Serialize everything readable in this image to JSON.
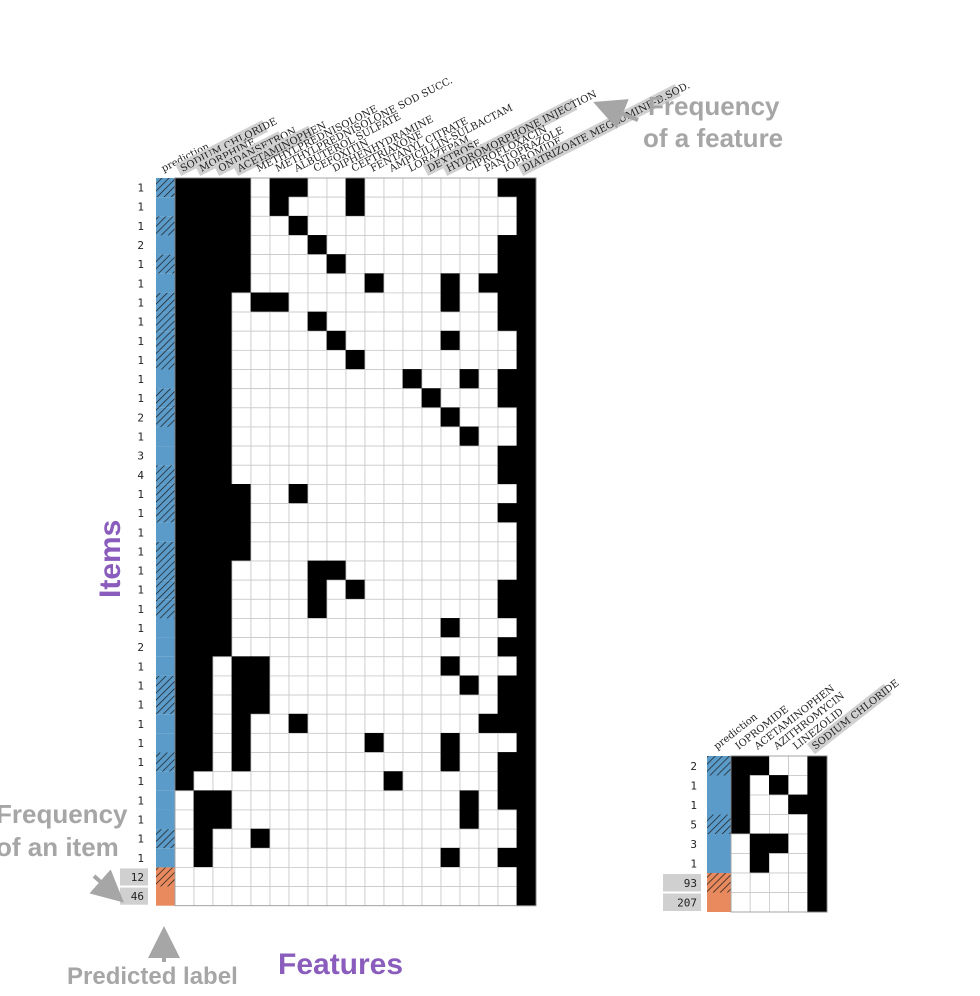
{
  "annotations": {
    "feature_freq": [
      "Frequency",
      "of a feature"
    ],
    "item_freq": [
      "Frequency",
      "of an item"
    ],
    "items": "Items",
    "predicted_label": "Predicted label",
    "features": "Features"
  },
  "colors": {
    "blue": "#5b9bc9",
    "orange": "#e88a5e",
    "filled": "#000000",
    "grid": "#c8c8c8",
    "header_bg": "#d0d0d0",
    "annotation": "#a6a6a6",
    "purple": "#8a5dbd"
  },
  "left_matrix": {
    "headers": [
      "prediction",
      "SODIUM CHLORIDE",
      "MORPHINE",
      "ONDANSETRON",
      "ACETAMINOPHEN",
      "METHYLPREDNISOLONE",
      "METHYLPREDNISOLONE SOD SUCC.",
      "ALBUTEROL SULFATE",
      "CEFOXITIN",
      "DIPHENHYDRAMINE",
      "CEFTRIAXONE",
      "FENTANYL CITRATE",
      "AMPICILLIN-SULBACTAM",
      "LORAZEPAM",
      "DEXTROSE",
      "HYDROMORPHONE INJECTION",
      "CIPROFLOXACIN",
      "PANTOPRAZOLE",
      "IOPROMIDE",
      "DIATRIZOATE MEGLUMINE-D.SOD."
    ],
    "feature_highlighted": [
      true,
      true,
      true,
      true,
      false,
      false,
      false,
      false,
      false,
      false,
      false,
      false,
      false,
      true,
      true,
      false,
      false,
      false,
      true
    ],
    "rows": [
      {
        "freq": "1",
        "pred": "blue",
        "hatch": true,
        "cells": [
          1,
          1,
          1,
          1,
          0,
          1,
          1,
          0,
          0,
          1,
          0,
          0,
          0,
          0,
          0,
          0,
          0,
          1,
          1
        ]
      },
      {
        "freq": "1",
        "pred": "blue",
        "hatch": false,
        "cells": [
          1,
          1,
          1,
          1,
          0,
          1,
          0,
          0,
          0,
          1,
          0,
          0,
          0,
          0,
          0,
          0,
          0,
          0,
          1
        ]
      },
      {
        "freq": "1",
        "pred": "blue",
        "hatch": true,
        "cells": [
          1,
          1,
          1,
          1,
          0,
          0,
          1,
          0,
          0,
          0,
          0,
          0,
          0,
          0,
          0,
          0,
          0,
          0,
          1
        ]
      },
      {
        "freq": "2",
        "pred": "blue",
        "hatch": false,
        "cells": [
          1,
          1,
          1,
          1,
          0,
          0,
          0,
          1,
          0,
          0,
          0,
          0,
          0,
          0,
          0,
          0,
          0,
          1,
          1
        ]
      },
      {
        "freq": "1",
        "pred": "blue",
        "hatch": true,
        "cells": [
          1,
          1,
          1,
          1,
          0,
          0,
          0,
          0,
          1,
          0,
          0,
          0,
          0,
          0,
          0,
          0,
          0,
          1,
          1
        ]
      },
      {
        "freq": "1",
        "pred": "blue",
        "hatch": false,
        "cells": [
          1,
          1,
          1,
          1,
          0,
          0,
          0,
          0,
          0,
          0,
          1,
          0,
          0,
          0,
          1,
          0,
          1,
          1,
          1
        ]
      },
      {
        "freq": "1",
        "pred": "blue",
        "hatch": true,
        "cells": [
          1,
          1,
          1,
          0,
          1,
          1,
          0,
          0,
          0,
          0,
          0,
          0,
          0,
          0,
          1,
          0,
          0,
          1,
          1
        ]
      },
      {
        "freq": "1",
        "pred": "blue",
        "hatch": true,
        "cells": [
          1,
          1,
          1,
          0,
          0,
          0,
          0,
          1,
          0,
          0,
          0,
          0,
          0,
          0,
          0,
          0,
          0,
          1,
          1
        ]
      },
      {
        "freq": "1",
        "pred": "blue",
        "hatch": true,
        "cells": [
          1,
          1,
          1,
          0,
          0,
          0,
          0,
          0,
          1,
          0,
          0,
          0,
          0,
          0,
          1,
          0,
          0,
          0,
          1
        ]
      },
      {
        "freq": "1",
        "pred": "blue",
        "hatch": true,
        "cells": [
          1,
          1,
          1,
          0,
          0,
          0,
          0,
          0,
          0,
          1,
          0,
          0,
          0,
          0,
          0,
          0,
          0,
          0,
          1
        ]
      },
      {
        "freq": "1",
        "pred": "blue",
        "hatch": false,
        "cells": [
          1,
          1,
          1,
          0,
          0,
          0,
          0,
          0,
          0,
          0,
          0,
          0,
          1,
          0,
          0,
          1,
          0,
          1,
          1
        ]
      },
      {
        "freq": "1",
        "pred": "blue",
        "hatch": true,
        "cells": [
          1,
          1,
          1,
          0,
          0,
          0,
          0,
          0,
          0,
          0,
          0,
          0,
          0,
          1,
          0,
          0,
          0,
          1,
          1
        ]
      },
      {
        "freq": "2",
        "pred": "blue",
        "hatch": true,
        "cells": [
          1,
          1,
          1,
          0,
          0,
          0,
          0,
          0,
          0,
          0,
          0,
          0,
          0,
          0,
          1,
          0,
          0,
          0,
          1
        ]
      },
      {
        "freq": "1",
        "pred": "blue",
        "hatch": false,
        "cells": [
          1,
          1,
          1,
          0,
          0,
          0,
          0,
          0,
          0,
          0,
          0,
          0,
          0,
          0,
          0,
          1,
          0,
          0,
          1
        ]
      },
      {
        "freq": "3",
        "pred": "blue",
        "hatch": false,
        "cells": [
          1,
          1,
          1,
          0,
          0,
          0,
          0,
          0,
          0,
          0,
          0,
          0,
          0,
          0,
          0,
          0,
          0,
          1,
          1
        ]
      },
      {
        "freq": "4",
        "pred": "blue",
        "hatch": true,
        "cells": [
          1,
          1,
          1,
          0,
          0,
          0,
          0,
          0,
          0,
          0,
          0,
          0,
          0,
          0,
          0,
          0,
          0,
          1,
          1
        ]
      },
      {
        "freq": "1",
        "pred": "blue",
        "hatch": true,
        "cells": [
          1,
          1,
          1,
          1,
          0,
          0,
          1,
          0,
          0,
          0,
          0,
          0,
          0,
          0,
          0,
          0,
          0,
          0,
          1
        ]
      },
      {
        "freq": "1",
        "pred": "blue",
        "hatch": true,
        "cells": [
          1,
          1,
          1,
          1,
          0,
          0,
          0,
          0,
          0,
          0,
          0,
          0,
          0,
          0,
          0,
          0,
          0,
          1,
          1
        ]
      },
      {
        "freq": "1",
        "pred": "blue",
        "hatch": false,
        "cells": [
          1,
          1,
          1,
          1,
          0,
          0,
          0,
          0,
          0,
          0,
          0,
          0,
          0,
          0,
          0,
          0,
          0,
          0,
          1
        ]
      },
      {
        "freq": "1",
        "pred": "blue",
        "hatch": true,
        "cells": [
          1,
          1,
          1,
          1,
          0,
          0,
          0,
          0,
          0,
          0,
          0,
          0,
          0,
          0,
          0,
          0,
          0,
          0,
          1
        ]
      },
      {
        "freq": "1",
        "pred": "blue",
        "hatch": true,
        "cells": [
          1,
          1,
          1,
          0,
          0,
          0,
          0,
          1,
          1,
          0,
          0,
          0,
          0,
          0,
          0,
          0,
          0,
          0,
          1
        ]
      },
      {
        "freq": "1",
        "pred": "blue",
        "hatch": true,
        "cells": [
          1,
          1,
          1,
          0,
          0,
          0,
          0,
          1,
          0,
          1,
          0,
          0,
          0,
          0,
          0,
          0,
          0,
          1,
          1
        ]
      },
      {
        "freq": "1",
        "pred": "blue",
        "hatch": true,
        "cells": [
          1,
          1,
          1,
          0,
          0,
          0,
          0,
          1,
          0,
          0,
          0,
          0,
          0,
          0,
          0,
          0,
          0,
          1,
          1
        ]
      },
      {
        "freq": "1",
        "pred": "blue",
        "hatch": false,
        "cells": [
          1,
          1,
          1,
          0,
          0,
          0,
          0,
          0,
          0,
          0,
          0,
          0,
          0,
          0,
          1,
          0,
          0,
          0,
          1
        ]
      },
      {
        "freq": "2",
        "pred": "blue",
        "hatch": false,
        "cells": [
          1,
          1,
          1,
          0,
          0,
          0,
          0,
          0,
          0,
          0,
          0,
          0,
          0,
          0,
          0,
          0,
          0,
          1,
          1
        ]
      },
      {
        "freq": "1",
        "pred": "blue",
        "hatch": false,
        "cells": [
          1,
          1,
          0,
          1,
          1,
          0,
          0,
          0,
          0,
          0,
          0,
          0,
          0,
          0,
          1,
          0,
          0,
          0,
          1
        ]
      },
      {
        "freq": "1",
        "pred": "blue",
        "hatch": true,
        "cells": [
          1,
          1,
          0,
          1,
          1,
          0,
          0,
          0,
          0,
          0,
          0,
          0,
          0,
          0,
          0,
          1,
          0,
          1,
          1
        ]
      },
      {
        "freq": "1",
        "pred": "blue",
        "hatch": true,
        "cells": [
          1,
          1,
          0,
          1,
          1,
          0,
          0,
          0,
          0,
          0,
          0,
          0,
          0,
          0,
          0,
          0,
          0,
          1,
          1
        ]
      },
      {
        "freq": "1",
        "pred": "blue",
        "hatch": false,
        "cells": [
          1,
          1,
          0,
          1,
          0,
          0,
          1,
          0,
          0,
          0,
          0,
          0,
          0,
          0,
          0,
          0,
          1,
          1,
          1
        ]
      },
      {
        "freq": "1",
        "pred": "blue",
        "hatch": false,
        "cells": [
          1,
          1,
          0,
          1,
          0,
          0,
          0,
          0,
          0,
          0,
          1,
          0,
          0,
          0,
          1,
          0,
          0,
          0,
          1
        ]
      },
      {
        "freq": "1",
        "pred": "blue",
        "hatch": true,
        "cells": [
          1,
          1,
          0,
          1,
          0,
          0,
          0,
          0,
          0,
          0,
          0,
          0,
          0,
          0,
          1,
          0,
          0,
          1,
          1
        ]
      },
      {
        "freq": "1",
        "pred": "blue",
        "hatch": false,
        "cells": [
          1,
          0,
          0,
          0,
          0,
          0,
          0,
          0,
          0,
          0,
          0,
          1,
          0,
          0,
          0,
          0,
          0,
          1,
          1
        ]
      },
      {
        "freq": "1",
        "pred": "blue",
        "hatch": false,
        "cells": [
          0,
          1,
          1,
          0,
          0,
          0,
          0,
          0,
          0,
          0,
          0,
          0,
          0,
          0,
          0,
          1,
          0,
          1,
          1
        ]
      },
      {
        "freq": "1",
        "pred": "blue",
        "hatch": false,
        "cells": [
          0,
          1,
          1,
          0,
          0,
          0,
          0,
          0,
          0,
          0,
          0,
          0,
          0,
          0,
          0,
          1,
          0,
          0,
          1
        ]
      },
      {
        "freq": "1",
        "pred": "blue",
        "hatch": true,
        "cells": [
          0,
          1,
          0,
          0,
          1,
          0,
          0,
          0,
          0,
          0,
          0,
          0,
          0,
          0,
          0,
          0,
          0,
          0,
          1
        ]
      },
      {
        "freq": "1",
        "pred": "blue",
        "hatch": false,
        "cells": [
          0,
          1,
          0,
          0,
          0,
          0,
          0,
          0,
          0,
          0,
          0,
          0,
          0,
          0,
          1,
          0,
          0,
          1,
          1
        ]
      },
      {
        "freq": "12",
        "pred": "orange",
        "hatch": true,
        "cells": [
          0,
          0,
          0,
          0,
          0,
          0,
          0,
          0,
          0,
          0,
          0,
          0,
          0,
          0,
          0,
          0,
          0,
          0,
          1
        ]
      },
      {
        "freq": "46",
        "pred": "orange",
        "hatch": false,
        "cells": [
          0,
          0,
          0,
          0,
          0,
          0,
          0,
          0,
          0,
          0,
          0,
          0,
          0,
          0,
          0,
          0,
          0,
          0,
          1
        ]
      }
    ]
  },
  "right_matrix": {
    "headers": [
      "prediction",
      "IOPROMIDE",
      "ACETAMINOPHEN",
      "AZITHROMYCIN",
      "LINEZOLID",
      "SODIUM CHLORIDE"
    ],
    "feature_highlighted": [
      false,
      false,
      false,
      false,
      true
    ],
    "rows": [
      {
        "freq": "2",
        "pred": "blue",
        "hatch": true,
        "cells": [
          1,
          1,
          0,
          0,
          1
        ]
      },
      {
        "freq": "1",
        "pred": "blue",
        "hatch": false,
        "cells": [
          1,
          0,
          1,
          0,
          1
        ]
      },
      {
        "freq": "1",
        "pred": "blue",
        "hatch": false,
        "cells": [
          1,
          0,
          0,
          1,
          1
        ]
      },
      {
        "freq": "5",
        "pred": "blue",
        "hatch": true,
        "cells": [
          1,
          0,
          0,
          0,
          1
        ]
      },
      {
        "freq": "3",
        "pred": "blue",
        "hatch": false,
        "cells": [
          0,
          1,
          1,
          0,
          1
        ]
      },
      {
        "freq": "1",
        "pred": "blue",
        "hatch": false,
        "cells": [
          0,
          1,
          0,
          0,
          1
        ]
      },
      {
        "freq": "93",
        "pred": "orange",
        "hatch": true,
        "cells": [
          0,
          0,
          0,
          0,
          1
        ]
      },
      {
        "freq": "207",
        "pred": "orange",
        "hatch": false,
        "cells": [
          0,
          0,
          0,
          0,
          1
        ]
      }
    ]
  }
}
